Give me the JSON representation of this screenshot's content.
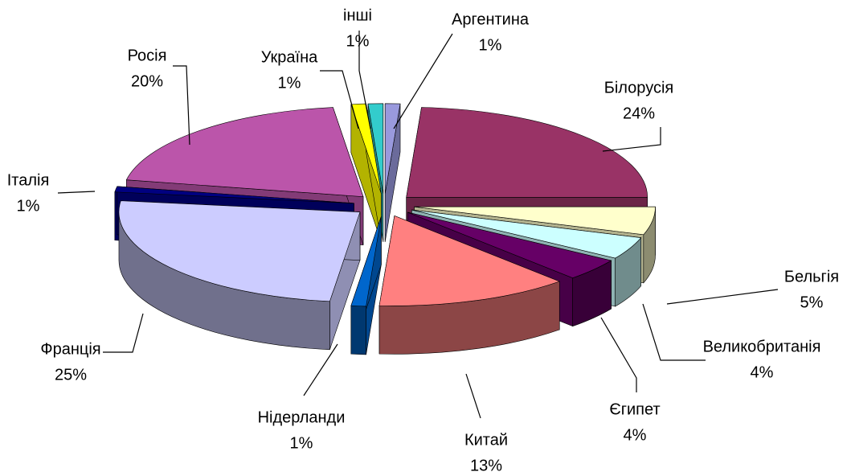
{
  "chart_data": {
    "type": "pie3d",
    "categories": [
      "Аргентина",
      "Білорусія",
      "Бельгія",
      "Великобританія",
      "Єгипет",
      "Китай",
      "Нідерланди",
      "Франція",
      "Італія",
      "Росія",
      "Україна",
      "інші"
    ],
    "values": [
      1,
      24,
      5,
      4,
      4,
      13,
      1,
      25,
      1,
      20,
      1,
      1
    ],
    "value_labels": [
      "1%",
      "24%",
      "5%",
      "4%",
      "4%",
      "13%",
      "1%",
      "25%",
      "1%",
      "20%",
      "1%",
      "1%"
    ],
    "colors": [
      "#9999dd",
      "#993366",
      "#ffffcc",
      "#ccffff",
      "#660066",
      "#ff8080",
      "#0066cc",
      "#ccccff",
      "#000080",
      "#bb55aa",
      "#ffff00",
      "#33cccc"
    ]
  }
}
